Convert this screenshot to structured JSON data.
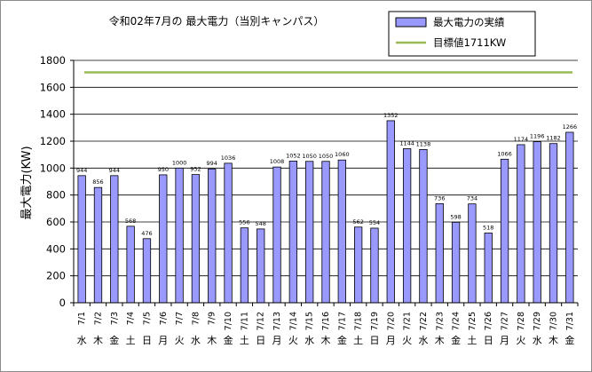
{
  "chart_data": {
    "type": "bar",
    "title": "令和02年7月の 最大電力（当別キャンパス）",
    "ylabel": "最大電力(KW)",
    "xlabel": "",
    "ylim": [
      0,
      1800
    ],
    "yticks": [
      0,
      200,
      400,
      600,
      800,
      1000,
      1200,
      1400,
      1600,
      1800
    ],
    "grid": true,
    "legend_position": "top-right",
    "categories": [
      "7/1",
      "7/2",
      "7/3",
      "7/4",
      "7/5",
      "7/6",
      "7/7",
      "7/8",
      "7/9",
      "7/10",
      "7/11",
      "7/12",
      "7/13",
      "7/14",
      "7/15",
      "7/16",
      "7/17",
      "7/18",
      "7/19",
      "7/20",
      "7/21",
      "7/22",
      "7/23",
      "7/24",
      "7/25",
      "7/26",
      "7/27",
      "7/28",
      "7/29",
      "7/30",
      "7/31"
    ],
    "weekdays": [
      "水",
      "木",
      "金",
      "土",
      "日",
      "月",
      "火",
      "水",
      "木",
      "金",
      "土",
      "日",
      "月",
      "火",
      "水",
      "木",
      "金",
      "土",
      "日",
      "月",
      "火",
      "水",
      "木",
      "金",
      "土",
      "日",
      "月",
      "火",
      "水",
      "木",
      "金"
    ],
    "series": [
      {
        "name": "最大電力の実績",
        "color": "#9999ff",
        "values": [
          944,
          856,
          944,
          568,
          476,
          950,
          1000,
          952,
          994,
          1036,
          556,
          548,
          1008,
          1052,
          1050,
          1050,
          1060,
          562,
          554,
          1352,
          1144,
          1138,
          736,
          598,
          734,
          518,
          1066,
          1174,
          1196,
          1182,
          1266
        ]
      },
      {
        "name": "目標値1711KW",
        "color": "#99bb55",
        "type": "line",
        "value": 1711
      }
    ]
  }
}
